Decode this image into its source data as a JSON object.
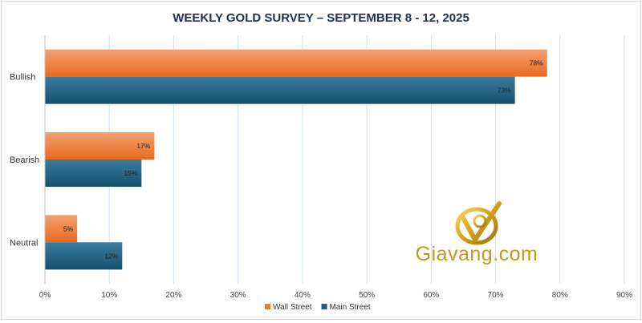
{
  "chart_data": {
    "type": "bar",
    "orientation": "horizontal",
    "title": "WEEKLY GOLD SURVEY – SEPTEMBER 8  - 12, 2025",
    "categories": [
      "Bullish",
      "Bearish",
      "Neutral"
    ],
    "series": [
      {
        "name": "Wall Street",
        "values": [
          78,
          17,
          5
        ],
        "labels": [
          "78%",
          "17%",
          "5%"
        ],
        "color": "#ED7D31"
      },
      {
        "name": "Main Street",
        "values": [
          73,
          15,
          12
        ],
        "labels": [
          "73%",
          "15%",
          "12%"
        ],
        "color": "#1F5F7F"
      }
    ],
    "xlim": [
      0,
      90
    ],
    "xticks": [
      0,
      10,
      20,
      30,
      40,
      50,
      60,
      70,
      80,
      90
    ],
    "xtick_labels": [
      "0%",
      "10%",
      "20%",
      "30%",
      "40%",
      "50%",
      "60%",
      "70%",
      "80%",
      "90%"
    ],
    "grid": true,
    "legend_position": "bottom"
  },
  "watermark": {
    "text": "Giavang.com",
    "color": "#D4A017"
  }
}
